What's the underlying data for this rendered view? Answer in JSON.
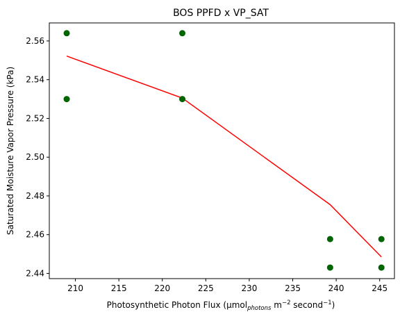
{
  "chart_data": {
    "type": "scatter",
    "title": "BOS PPFD x VP_SAT",
    "xlabel": {
      "prefix": "Photosynthetic Photon Flux (μmol",
      "subscript": "photons",
      "middle1": " m",
      "sup1": "−2",
      "middle2": " second",
      "sup2": "−1",
      "suffix": ")"
    },
    "ylabel": "Saturated Moisture Vapor Pressure (kPa)",
    "xlim": [
      207,
      246.7
    ],
    "ylim": [
      2.4373,
      2.5693
    ],
    "xticks": [
      210,
      215,
      220,
      225,
      230,
      235,
      240,
      245
    ],
    "xtick_labels": [
      "210",
      "215",
      "220",
      "225",
      "230",
      "235",
      "240",
      "245"
    ],
    "yticks": [
      2.44,
      2.46,
      2.48,
      2.5,
      2.52,
      2.54,
      2.56
    ],
    "ytick_labels": [
      "2.44",
      "2.46",
      "2.48",
      "2.50",
      "2.52",
      "2.54",
      "2.56"
    ],
    "grid": false,
    "series": [
      {
        "kind": "scatter",
        "color": "#006400",
        "points": [
          {
            "x": 209.0,
            "y": 2.564
          },
          {
            "x": 209.0,
            "y": 2.53
          },
          {
            "x": 222.3,
            "y": 2.564
          },
          {
            "x": 222.3,
            "y": 2.53
          },
          {
            "x": 239.3,
            "y": 2.4577
          },
          {
            "x": 239.3,
            "y": 2.443
          },
          {
            "x": 245.2,
            "y": 2.4577
          },
          {
            "x": 245.2,
            "y": 2.443
          }
        ]
      },
      {
        "kind": "line",
        "color": "#ff0000",
        "points": [
          {
            "x": 209.0,
            "y": 2.5522
          },
          {
            "x": 222.3,
            "y": 2.5305
          },
          {
            "x": 239.3,
            "y": 2.4755
          },
          {
            "x": 245.2,
            "y": 2.4485
          }
        ]
      }
    ]
  }
}
